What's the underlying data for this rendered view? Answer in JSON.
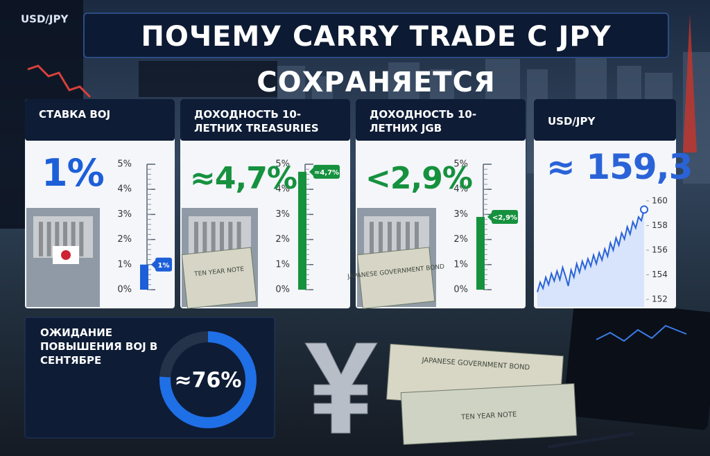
{
  "title": "ПОЧЕМУ CARRY TRADE С JPY СОХРАНЯЕТСЯ",
  "cards": [
    {
      "title": "СТАВКА BOJ",
      "big_label": "1%",
      "value": 1,
      "marker_label": "1%",
      "color": "#1d5fd8",
      "ylim": [
        0,
        5
      ],
      "yticks": [
        {
          "value": 0,
          "label": "0%"
        },
        {
          "value": 1,
          "label": "1%"
        },
        {
          "value": 2,
          "label": "2%"
        },
        {
          "value": 3,
          "label": "3%"
        },
        {
          "value": 4,
          "label": "4%"
        },
        {
          "value": 5,
          "label": "5%"
        }
      ]
    },
    {
      "title": "ДОХОДНОСТЬ 10-ЛЕТНИХ TREASURIES",
      "big_label": "≈4,7%",
      "value": 4.7,
      "marker_label": "≈4,7%",
      "color": "#16913e",
      "ylim": [
        0,
        5
      ],
      "yticks": [
        {
          "value": 0,
          "label": "0%"
        },
        {
          "value": 1,
          "label": "1%"
        },
        {
          "value": 2,
          "label": "2%"
        },
        {
          "value": 3,
          "label": "3%"
        },
        {
          "value": 4,
          "label": "4%"
        },
        {
          "value": 5,
          "label": "5%"
        }
      ]
    },
    {
      "title": "ДОХОДНОСТЬ 10-ЛЕТНИХ JGB",
      "big_label": "<2,9%",
      "value": 2.9,
      "marker_label": "<2,9%",
      "color": "#16913e",
      "ylim": [
        0,
        5
      ],
      "yticks": [
        {
          "value": 0,
          "label": "0%"
        },
        {
          "value": 1,
          "label": "1%"
        },
        {
          "value": 2,
          "label": "2%"
        },
        {
          "value": 3,
          "label": "3%"
        },
        {
          "value": 4,
          "label": "4%"
        },
        {
          "value": 5,
          "label": "5%"
        }
      ]
    }
  ],
  "usdjpy": {
    "title": "USD/JPY",
    "big_label": "≈ 159,3",
    "color": "#2a63d8",
    "ylim": [
      151.5,
      160.5
    ],
    "yticks": [
      152,
      154,
      156,
      158,
      160
    ],
    "values": [
      152.6,
      153.4,
      152.9,
      153.8,
      153.2,
      154.1,
      153.5,
      154.3,
      153.6,
      154.6,
      153.9,
      153.1,
      154.4,
      153.8,
      154.9,
      154.2,
      155.1,
      154.5,
      155.3,
      154.7,
      155.6,
      154.9,
      155.8,
      155.2,
      156.1,
      155.5,
      156.6,
      156.0,
      157.0,
      156.4,
      157.4,
      156.9,
      157.9,
      157.3,
      158.3,
      157.8,
      158.7,
      158.4,
      159.3
    ]
  },
  "expectation": {
    "title": "ОЖИДАНИЕ ПОВЫШЕНИЯ BOJ В СЕНТЯБРЕ",
    "value": 76,
    "value_label": "≈76%",
    "max": 100,
    "color": "#1f6fe6"
  },
  "decor": {
    "screen_label": "USD/JPY",
    "jgb_note": "JAPANESE GOVERNMENT BOND",
    "treasury_note": "TEN YEAR NOTE"
  }
}
